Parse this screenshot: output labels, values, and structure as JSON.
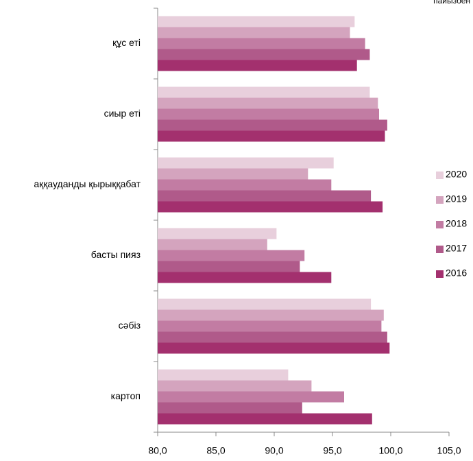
{
  "chart_data": {
    "type": "hbar",
    "annotation": "пайызбен",
    "categories": [
      "құс еті",
      "сиыр еті",
      "аққауданды қырыққабат",
      "басты пияз",
      "сәбіз",
      "картоп"
    ],
    "series": [
      {
        "name": "2020",
        "color": "#e8cfdc",
        "values": [
          96.9,
          98.2,
          95.1,
          90.2,
          98.3,
          91.2
        ]
      },
      {
        "name": "2019",
        "color": "#d4a4be",
        "values": [
          96.5,
          98.9,
          92.9,
          89.4,
          99.4,
          93.2
        ]
      },
      {
        "name": "2018",
        "color": "#c27ca3",
        "values": [
          97.8,
          99.0,
          94.9,
          92.6,
          99.2,
          96.0
        ]
      },
      {
        "name": "2017",
        "color": "#b05a8a",
        "values": [
          98.2,
          99.7,
          98.3,
          92.2,
          99.7,
          92.4
        ]
      },
      {
        "name": "2016",
        "color": "#a3306e",
        "values": [
          97.1,
          99.5,
          99.3,
          94.9,
          99.9,
          98.4
        ]
      }
    ],
    "xlim": [
      80,
      105
    ],
    "xticks": [
      {
        "value": 80,
        "label": "80,0"
      },
      {
        "value": 85,
        "label": "85,0"
      },
      {
        "value": 90,
        "label": "90,0"
      },
      {
        "value": 95,
        "label": "95,0"
      },
      {
        "value": 100,
        "label": "100,0"
      },
      {
        "value": 105,
        "label": "105,0"
      }
    ],
    "legend": "right"
  }
}
